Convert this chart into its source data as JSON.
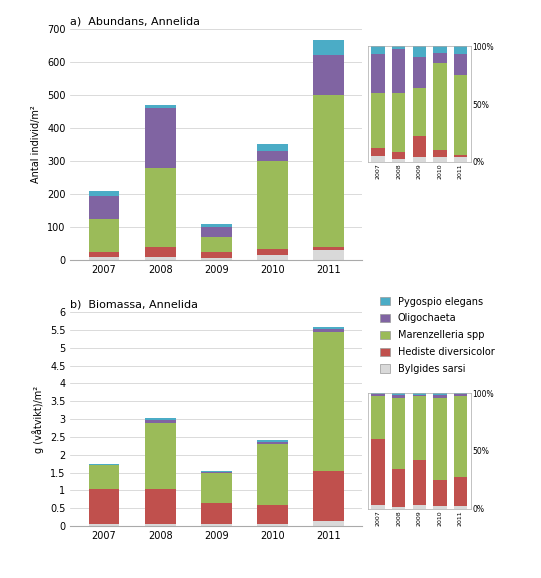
{
  "years": [
    2007,
    2008,
    2009,
    2010,
    2011
  ],
  "title_a": "a)  Abundans, Annelida",
  "title_b": "b)  Biomassa, Annelida",
  "ylabel_a": "Antal individ/m²",
  "ylabel_b": "g (våtvikt)/m²",
  "ylim_a": [
    0,
    700
  ],
  "yticks_a": [
    0,
    100,
    200,
    300,
    400,
    500,
    600,
    700
  ],
  "ylim_b": [
    0,
    6
  ],
  "yticks_b": [
    0,
    0.5,
    1,
    1.5,
    2,
    2.5,
    3,
    3.5,
    4,
    4.5,
    5,
    5.5,
    6
  ],
  "abundans": {
    "Bylgides sarsi": [
      10,
      10,
      5,
      15,
      30
    ],
    "Hediste diversicolor": [
      15,
      30,
      20,
      20,
      10
    ],
    "Marenzelleria spp": [
      100,
      240,
      45,
      265,
      460
    ],
    "Oligochaeta": [
      70,
      180,
      30,
      30,
      120
    ],
    "Pygospio elegans": [
      15,
      10,
      10,
      20,
      45
    ]
  },
  "biomassa": {
    "Bylgides sarsi": [
      0.05,
      0.05,
      0.05,
      0.05,
      0.15
    ],
    "Hediste diversicolor": [
      1.0,
      1.0,
      0.6,
      0.55,
      1.4
    ],
    "Marenzelleria spp": [
      0.65,
      1.85,
      0.85,
      1.7,
      3.9
    ],
    "Oligochaeta": [
      0.02,
      0.08,
      0.02,
      0.05,
      0.08
    ],
    "Pygospio elegans": [
      0.02,
      0.05,
      0.02,
      0.05,
      0.05
    ]
  },
  "colors": {
    "Bylgides sarsi": "#d9d9d9",
    "Hediste diversicolor": "#c0504d",
    "Marenzelleria spp": "#9bbb59",
    "Oligochaeta": "#8064a2",
    "Pygospio elegans": "#4bacc6"
  },
  "species_order": [
    "Bylgides sarsi",
    "Hediste diversicolor",
    "Marenzelleria spp",
    "Oligochaeta",
    "Pygospio elegans"
  ],
  "legend_labels": [
    "Pygospio elegans",
    "Oligochaeta",
    "Marenzelleria spp",
    "Hediste diversicolor",
    "Bylgides sarsi"
  ],
  "bar_width": 0.55,
  "background_color": "#ffffff"
}
